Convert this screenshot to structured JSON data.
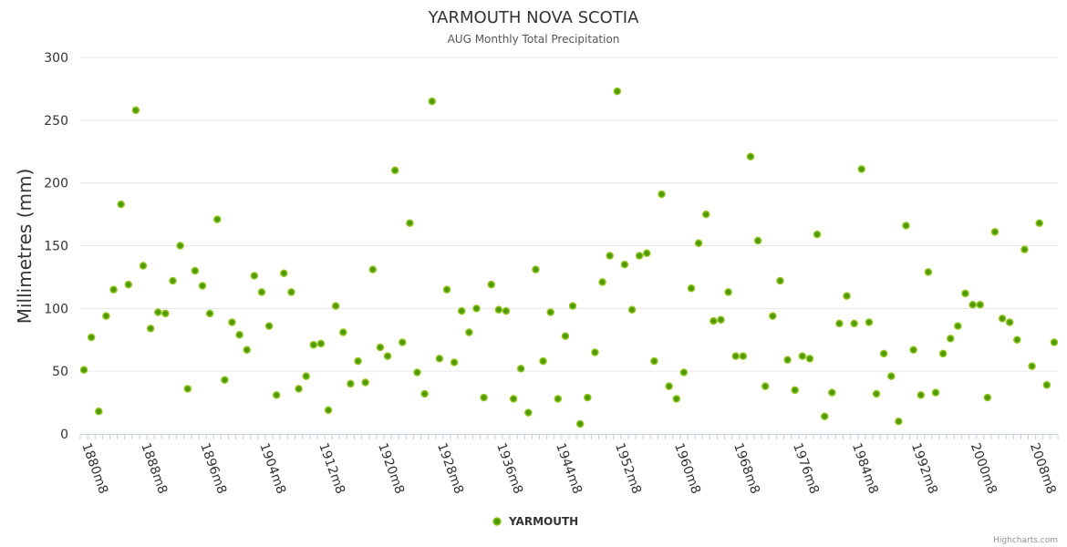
{
  "chart_data": {
    "type": "scatter",
    "title": "YARMOUTH NOVA SCOTIA",
    "subtitle": "AUG Monthly Total Precipitation",
    "xlabel": "",
    "ylabel": "Millimetres (mm)",
    "ylim": [
      0,
      300
    ],
    "yticks": [
      0,
      50,
      100,
      150,
      200,
      250,
      300
    ],
    "grid": true,
    "legend_placement": "bottom-center",
    "x_start_year": 1880,
    "x_label_every": 8,
    "x_label_suffix": "m8",
    "series": [
      {
        "name": "YARMOUTH",
        "color": "#7cb5ec",
        "marker_fill": "#4f9a00",
        "marker_stroke": "#90c31f",
        "values": [
          51,
          77,
          18,
          94,
          115,
          183,
          119,
          258,
          134,
          84,
          97,
          96,
          122,
          150,
          36,
          130,
          118,
          96,
          171,
          43,
          89,
          79,
          67,
          126,
          113,
          86,
          31,
          128,
          113,
          36,
          46,
          71,
          72,
          19,
          102,
          81,
          40,
          58,
          41,
          131,
          69,
          62,
          210,
          73,
          168,
          49,
          32,
          265,
          60,
          115,
          57,
          98,
          81,
          100,
          29,
          119,
          99,
          98,
          28,
          52,
          17,
          131,
          58,
          97,
          28,
          78,
          102,
          8,
          29,
          65,
          121,
          142,
          273,
          135,
          99,
          142,
          144,
          58,
          191,
          38,
          28,
          49,
          116,
          152,
          175,
          90,
          91,
          113,
          62,
          62,
          221,
          154,
          38,
          94,
          122,
          59,
          35,
          62,
          60,
          159,
          14,
          33,
          88,
          110,
          88,
          211,
          89,
          32,
          64,
          46,
          10,
          166,
          67,
          31,
          129,
          33,
          64,
          76,
          86,
          112,
          103,
          103,
          29,
          161,
          92,
          89,
          75,
          147,
          54,
          168,
          39,
          73
        ]
      }
    ]
  },
  "credit": "Highcharts.com"
}
